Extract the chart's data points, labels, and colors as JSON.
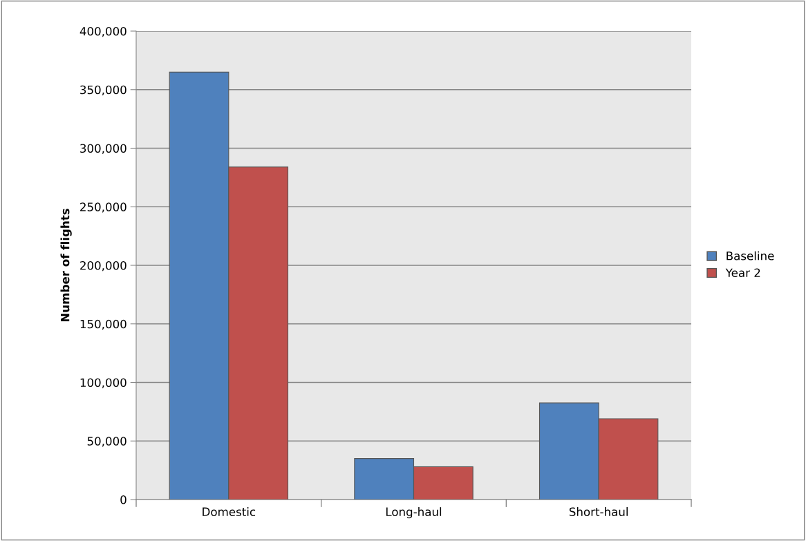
{
  "chart_data": {
    "type": "bar",
    "ylabel": "Number of flights",
    "categories": [
      "Domestic",
      "Long-haul",
      "Short-haul"
    ],
    "series": [
      {
        "name": "Baseline",
        "color": "#4f81bd",
        "values": [
          365000,
          35000,
          82500
        ]
      },
      {
        "name": "Year 2",
        "color": "#c0504d",
        "values": [
          284000,
          28000,
          69000
        ]
      }
    ],
    "ylim": [
      0,
      400000
    ],
    "yticks": [
      {
        "value": 0,
        "label": "0"
      },
      {
        "value": 50000,
        "label": "50,000"
      },
      {
        "value": 100000,
        "label": "100,000"
      },
      {
        "value": 150000,
        "label": "150,000"
      },
      {
        "value": 200000,
        "label": "200,000"
      },
      {
        "value": 250000,
        "label": "250,000"
      },
      {
        "value": 300000,
        "label": "300,000"
      },
      {
        "value": 350000,
        "label": "350,000"
      },
      {
        "value": 400000,
        "label": "400,000"
      }
    ],
    "grid": "y",
    "legend": "right"
  }
}
